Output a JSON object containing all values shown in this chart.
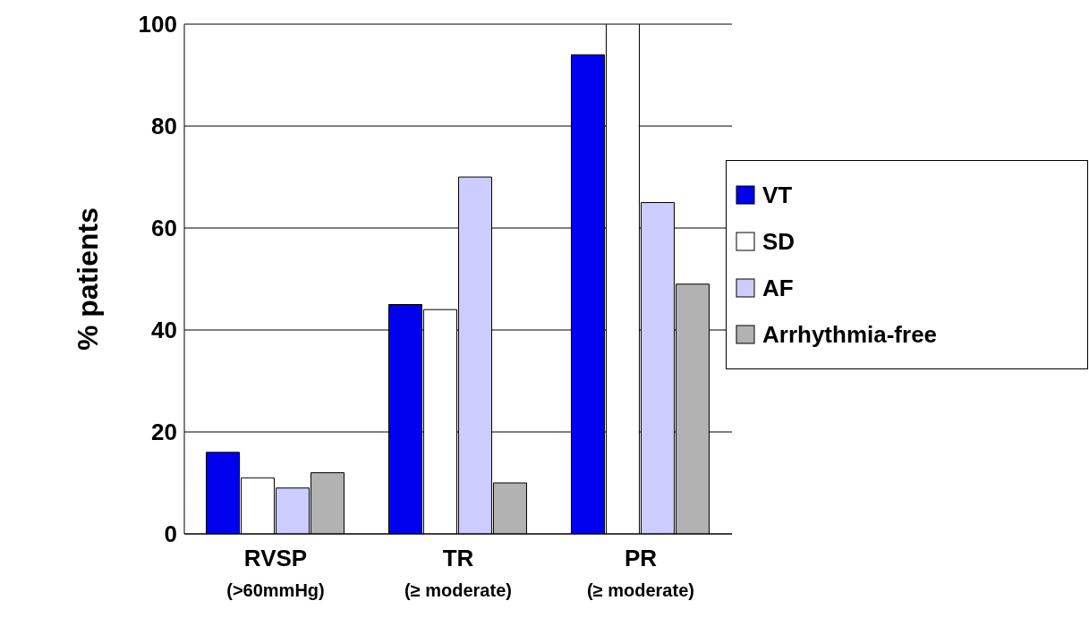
{
  "chart_data": {
    "type": "bar",
    "ylabel": "% patients",
    "categories": [
      "RVSP\n(>60mmHg)",
      "TR\n(≥ moderate)",
      "PR\n(≥ moderate)"
    ],
    "series": [
      {
        "name": "VT",
        "color": "#0000ee",
        "values": [
          16,
          45,
          94
        ]
      },
      {
        "name": "SD",
        "color": "#ffffff",
        "values": [
          11,
          44,
          100
        ]
      },
      {
        "name": "AF",
        "color": "#ccccff",
        "values": [
          9,
          70,
          65
        ]
      },
      {
        "name": "Arrhythmia-free",
        "color": "#b2b2b2",
        "values": [
          12,
          10,
          49
        ]
      }
    ],
    "ylim": [
      0,
      100
    ],
    "yticks": [
      0,
      20,
      40,
      60,
      80,
      100
    ],
    "grid": "y",
    "legend": "right"
  }
}
